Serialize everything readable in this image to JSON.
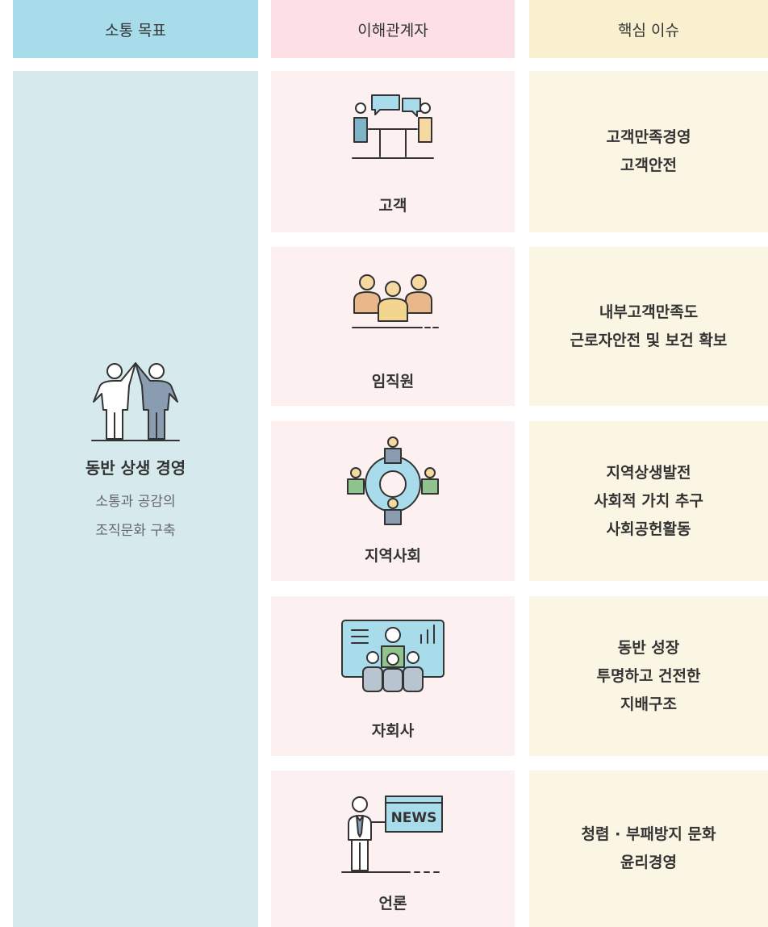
{
  "headers": [
    "소통 목표",
    "이해관계자",
    "핵심 이슈"
  ],
  "goal": {
    "title": "동반 상생 경영",
    "description": [
      "소통과 공감의",
      "조직문화 구축"
    ]
  },
  "stakeholders": [
    {
      "name": "고객",
      "issues": [
        "고객만족경영",
        "고객안전"
      ]
    },
    {
      "name": "임직원",
      "issues": [
        "내부고객만족도",
        "근로자안전 및 보건 확보"
      ]
    },
    {
      "name": "지역사회",
      "issues": [
        "지역상생발전",
        "사회적 가치 추구",
        "사회공헌활동"
      ]
    },
    {
      "name": "자회사",
      "issues": [
        "동반 성장",
        "투명하고 건전한",
        "지배구조"
      ]
    },
    {
      "name": "언론",
      "icon_text": "NEWS",
      "issues": [
        "청렴 · 부패방지 문화",
        "윤리경영"
      ]
    }
  ]
}
